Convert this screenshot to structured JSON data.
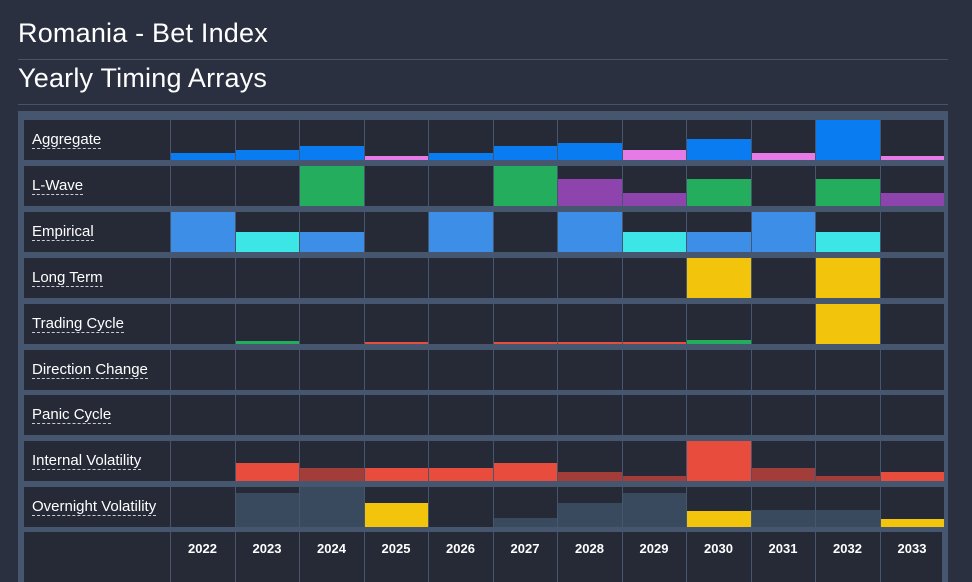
{
  "page": {
    "title": "Romania - Bet Index",
    "subtitle": "Yearly Timing Arrays"
  },
  "colors": {
    "background": "#2a3040",
    "cell": "#252a36",
    "frame": "#47566f",
    "blue": "#0a7cf2",
    "magenta": "#e67ae6",
    "green": "#25ad5e",
    "purple": "#8e44ad",
    "empirical_blue": "#3d8ee6",
    "cyan": "#3de6e6",
    "yellow": "#f2c40c",
    "red": "#e84c3d",
    "dark_red": "#a33d3a",
    "slate": "#3a4a5e"
  },
  "chart_data": {
    "type": "heatmap",
    "years": [
      "2022",
      "2023",
      "2024",
      "2025",
      "2026",
      "2027",
      "2028",
      "2029",
      "2030",
      "2031",
      "2032",
      "2033"
    ],
    "rows": [
      {
        "label": "Aggregate",
        "values": [
          0.18,
          0.24,
          0.35,
          0.1,
          0.18,
          0.35,
          0.42,
          0.24,
          0.52,
          0.17,
          1.0,
          0.1
        ],
        "colors": [
          "blue",
          "blue",
          "blue",
          "magenta",
          "blue",
          "blue",
          "blue",
          "magenta",
          "blue",
          "magenta",
          "blue",
          "magenta"
        ]
      },
      {
        "label": "L-Wave",
        "values": [
          0,
          0,
          1.0,
          0,
          0,
          1.0,
          0.68,
          0.33,
          0.68,
          0,
          0.68,
          0.33
        ],
        "colors": [
          "green",
          "green",
          "green",
          "green",
          "green",
          "green",
          "purple",
          "purple",
          "green",
          "green",
          "green",
          "purple"
        ]
      },
      {
        "label": "Empirical",
        "values": [
          1.0,
          0.5,
          0.5,
          0,
          1.0,
          0,
          1.0,
          0.5,
          0.5,
          1.0,
          0.5,
          0
        ],
        "colors": [
          "empirical_blue",
          "cyan",
          "empirical_blue",
          "empirical_blue",
          "empirical_blue",
          "empirical_blue",
          "empirical_blue",
          "cyan",
          "empirical_blue",
          "empirical_blue",
          "cyan",
          "empirical_blue"
        ]
      },
      {
        "label": "Long Term",
        "values": [
          0,
          0,
          0,
          0,
          0,
          0,
          0,
          0,
          1.0,
          0,
          1.0,
          0
        ],
        "colors": [
          "yellow",
          "yellow",
          "yellow",
          "yellow",
          "yellow",
          "yellow",
          "yellow",
          "yellow",
          "yellow",
          "yellow",
          "yellow",
          "yellow"
        ]
      },
      {
        "label": "Trading Cycle",
        "values": [
          0,
          0.07,
          0,
          0.04,
          0,
          0.04,
          0.04,
          0.06,
          0.1,
          0,
          1.0,
          0
        ],
        "colors": [
          "green",
          "green",
          "green",
          "red",
          "green",
          "red",
          "red",
          "red",
          "green",
          "green",
          "yellow",
          "green"
        ]
      },
      {
        "label": "Direction Change",
        "values": [
          0,
          0,
          0,
          0,
          0,
          0,
          0,
          0,
          0,
          0,
          0,
          0
        ],
        "colors": [
          "blue",
          "blue",
          "blue",
          "blue",
          "blue",
          "blue",
          "blue",
          "blue",
          "blue",
          "blue",
          "blue",
          "blue"
        ]
      },
      {
        "label": "Panic Cycle",
        "values": [
          0,
          0,
          0,
          0,
          0,
          0,
          0,
          0,
          0,
          0,
          0,
          0
        ],
        "colors": [
          "blue",
          "blue",
          "blue",
          "blue",
          "blue",
          "blue",
          "blue",
          "blue",
          "blue",
          "blue",
          "blue",
          "blue"
        ]
      },
      {
        "label": "Internal Volatility",
        "values": [
          0,
          0.45,
          0.32,
          0.32,
          0.32,
          0.45,
          0.22,
          0.12,
          1.0,
          0.32,
          0.12,
          0.22
        ],
        "colors": [
          "red",
          "red",
          "dark_red",
          "red",
          "red",
          "red",
          "dark_red",
          "dark_red",
          "red",
          "dark_red",
          "dark_red",
          "red"
        ]
      },
      {
        "label": "Overnight Volatility",
        "values": [
          0,
          0.85,
          1.0,
          0.6,
          0,
          0.22,
          0.6,
          0.85,
          0.4,
          0.42,
          0.42,
          0.2
        ],
        "colors": [
          "slate",
          "slate",
          "slate",
          "yellow",
          "slate",
          "slate",
          "slate",
          "slate",
          "yellow",
          "slate",
          "slate",
          "yellow"
        ]
      }
    ]
  }
}
